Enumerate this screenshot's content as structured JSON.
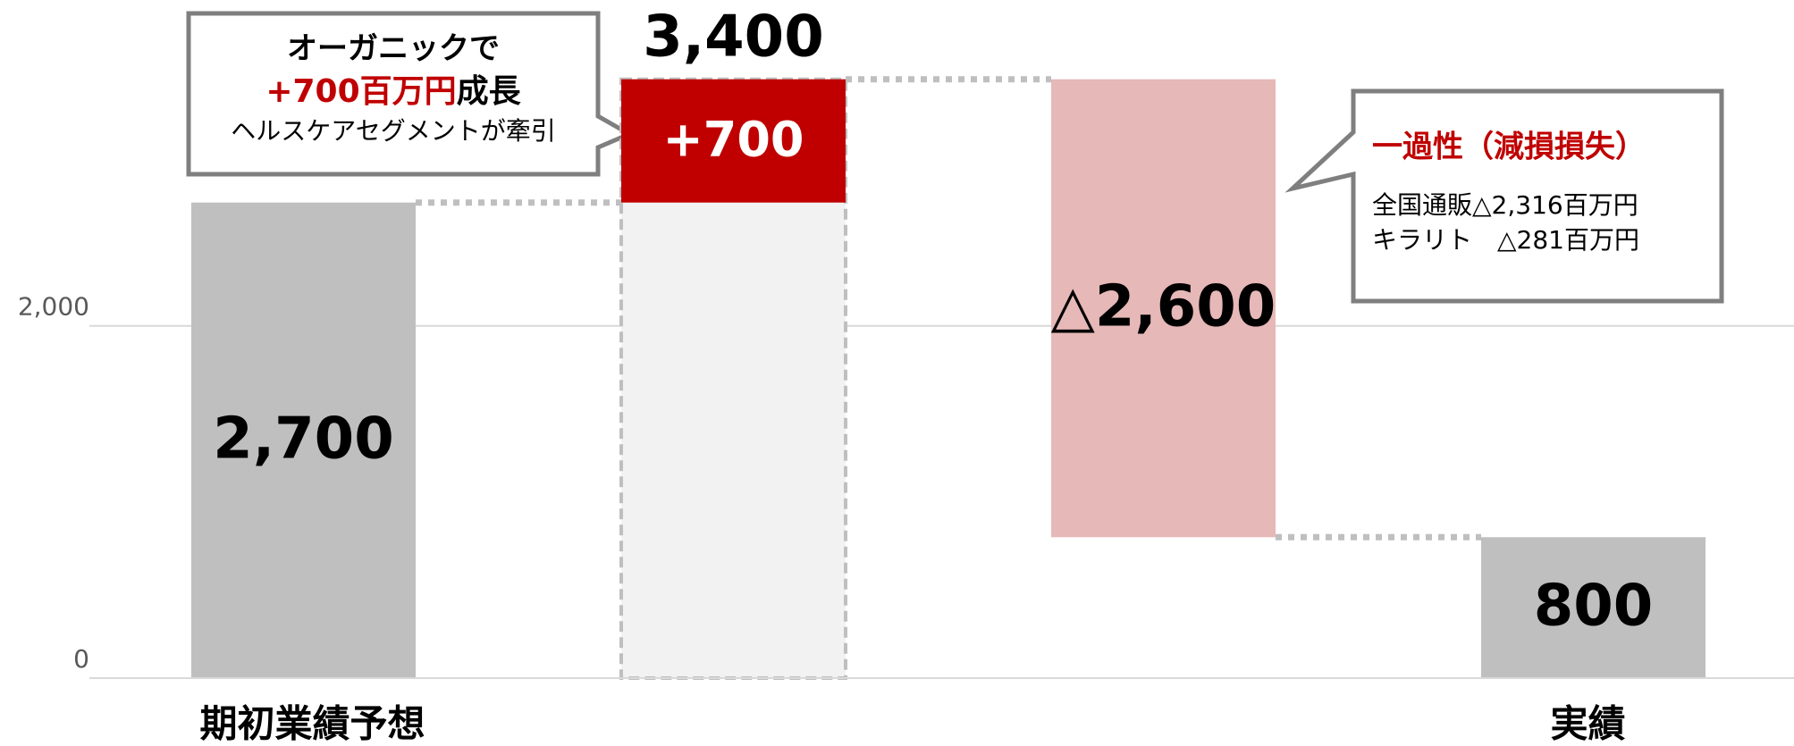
{
  "chart_data": {
    "type": "waterfall",
    "categories": [
      "期初業績予想",
      null,
      null,
      "実績"
    ],
    "values": [
      2700,
      700,
      -2600,
      800
    ],
    "value_labels": [
      "2,700",
      "+700",
      "△2,600",
      "800"
    ],
    "kinds": [
      "total",
      "delta",
      "delta",
      "total"
    ],
    "colors": [
      "#bfbfbf",
      "#c00000",
      "#e6b8b7",
      "#bfbfbf"
    ],
    "subtotal": 3400,
    "subtotal_label": "3,400",
    "ylim": [
      0,
      3850
    ],
    "yticks": [
      0,
      {
        "value": 2000,
        "label": "2,000"
      }
    ],
    "grid": true,
    "annotations": [
      {
        "lines": [
          "オーガニックで",
          "+700百万円",
          "成長",
          "ヘルスケアセグメントが牽引"
        ]
      },
      {
        "lines": [
          "一過性（減損損失）",
          "全国通販△2,316百万円",
          "キラリト　△281百万円"
        ]
      }
    ]
  }
}
